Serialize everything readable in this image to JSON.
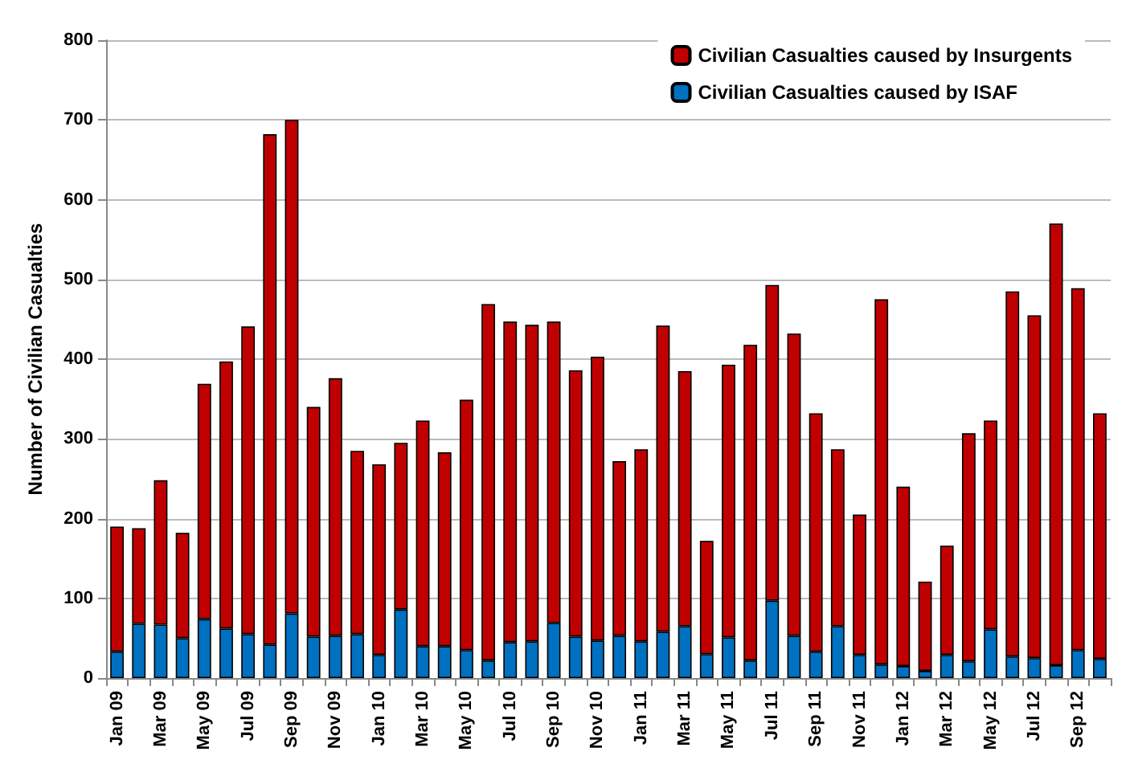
{
  "chart_data": {
    "type": "bar",
    "ylabel": "Number of Civilian Casualties",
    "stacked": true,
    "grid": "y",
    "legend": "top right",
    "categories": [
      "Jan 09",
      null,
      "Mar 09",
      null,
      "May 09",
      null,
      "Jul 09",
      null,
      "Sep 09",
      null,
      "Nov 09",
      null,
      "Jan 10",
      null,
      "Mar 10",
      null,
      "May 10",
      null,
      "Jul 10",
      null,
      "Sep 10",
      null,
      "Nov 10",
      null,
      "Jan 11",
      null,
      "Mar 11",
      null,
      "May 11",
      null,
      "Jul 11",
      null,
      "Sep 11",
      null,
      "Nov 11",
      null,
      "Jan 12",
      null,
      "Mar 12",
      null,
      "May 12",
      null,
      "Jul 12",
      null,
      "Sep 12",
      null
    ],
    "ylim": [
      0,
      800
    ],
    "yticks": [
      0,
      100,
      200,
      300,
      400,
      500,
      600,
      700,
      800
    ],
    "series": [
      {
        "name": "Civilian Casualties caused by ISAF",
        "color": "#0070c0",
        "values": [
          33,
          68,
          67,
          50,
          74,
          62,
          55,
          42,
          81,
          52,
          53,
          55,
          29,
          86,
          40,
          40,
          35,
          22,
          45,
          46,
          69,
          52,
          47,
          53,
          46,
          58,
          65,
          30,
          51,
          22,
          97,
          53,
          33,
          65,
          29,
          17,
          15,
          9,
          29,
          21,
          61,
          27,
          25,
          16,
          35,
          24
        ]
      },
      {
        "name": "Civilian Casualties caused by Insurgents",
        "color": "#c00000",
        "values": [
          157,
          120,
          181,
          132,
          295,
          335,
          386,
          640,
          619,
          288,
          323,
          230,
          239,
          209,
          283,
          243,
          314,
          447,
          402,
          397,
          378,
          334,
          356,
          219,
          241,
          384,
          320,
          142,
          342,
          396,
          396,
          379,
          299,
          222,
          176,
          458,
          225,
          112,
          137,
          286,
          262,
          458,
          430,
          554,
          454,
          308
        ]
      }
    ]
  }
}
